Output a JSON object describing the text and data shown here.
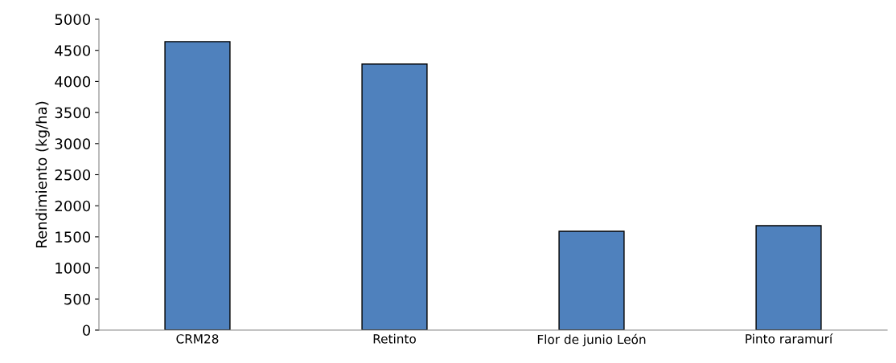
{
  "chart_data": {
    "type": "bar",
    "ylabel": "Rendimiento (kg/ha)",
    "categories": [
      "CRM28",
      "Retinto",
      "Flor de junio León",
      "Pinto raramurí"
    ],
    "values": [
      4640,
      4280,
      1590,
      1680
    ],
    "color": "#4f81bd",
    "ylim": [
      0,
      5000
    ],
    "yticks": [
      0,
      500,
      1000,
      1500,
      2000,
      2500,
      3000,
      3500,
      4000,
      4500,
      5000
    ]
  }
}
